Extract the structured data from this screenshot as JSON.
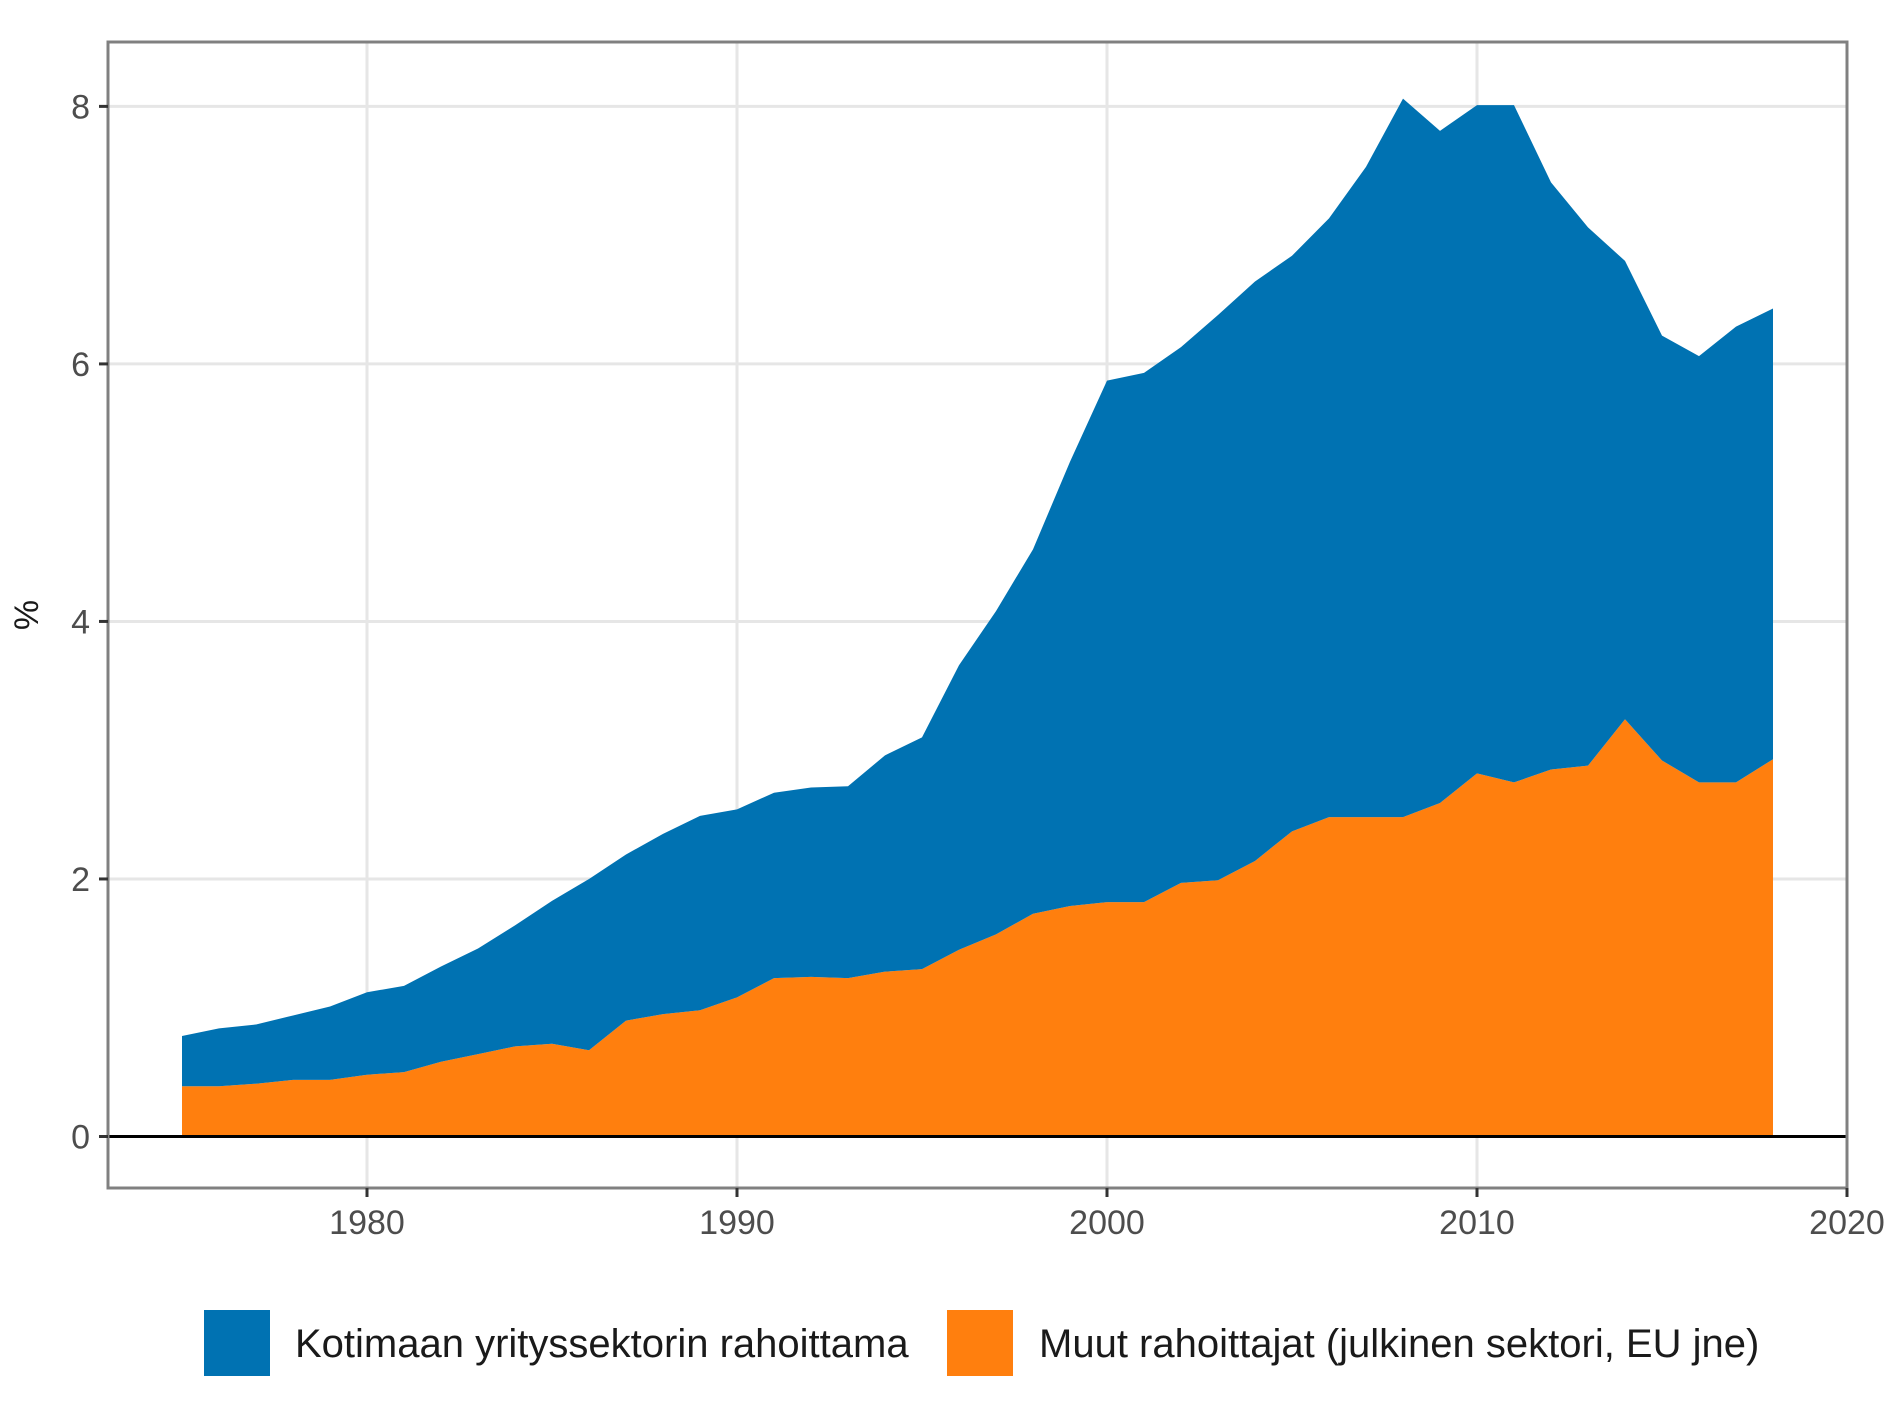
{
  "chart_data": {
    "type": "area",
    "stacked": true,
    "title": "",
    "xlabel": "",
    "ylabel": "%",
    "xlim": [
      1973,
      2020
    ],
    "ylim": [
      -0.4,
      8.5
    ],
    "x_ticks": [
      1980,
      1990,
      2000,
      2010,
      2020
    ],
    "y_ticks": [
      0,
      2,
      4,
      6,
      8
    ],
    "grid": true,
    "legend_position": "bottom",
    "x": [
      1975,
      1976,
      1977,
      1978,
      1979,
      1980,
      1981,
      1982,
      1983,
      1984,
      1985,
      1986,
      1987,
      1988,
      1989,
      1990,
      1991,
      1992,
      1993,
      1994,
      1995,
      1996,
      1997,
      1998,
      1999,
      2000,
      2001,
      2002,
      2003,
      2004,
      2005,
      2006,
      2007,
      2008,
      2009,
      2010,
      2011,
      2012,
      2013,
      2014,
      2015,
      2016,
      2017,
      2018
    ],
    "series": [
      {
        "name": "Muut rahoittajat (julkinen sektori, EU jne)",
        "color": "#FF7F0E",
        "values": [
          0.39,
          0.39,
          0.41,
          0.44,
          0.44,
          0.48,
          0.5,
          0.58,
          0.64,
          0.7,
          0.72,
          0.67,
          0.9,
          0.95,
          0.98,
          1.08,
          1.23,
          1.24,
          1.23,
          1.28,
          1.3,
          1.45,
          1.57,
          1.73,
          1.79,
          1.82,
          1.82,
          1.97,
          1.99,
          2.14,
          2.37,
          2.48,
          2.48,
          2.48,
          2.59,
          2.82,
          2.75,
          2.85,
          2.88,
          3.24,
          2.92,
          2.75,
          2.75,
          2.93
        ]
      },
      {
        "name": "Kotimaan yrityssektorin rahoittama",
        "color": "#0072B2",
        "values": [
          0.39,
          0.45,
          0.46,
          0.5,
          0.57,
          0.64,
          0.67,
          0.74,
          0.82,
          0.94,
          1.11,
          1.33,
          1.29,
          1.4,
          1.51,
          1.46,
          1.44,
          1.47,
          1.49,
          1.68,
          1.8,
          2.21,
          2.51,
          2.83,
          3.45,
          4.05,
          4.11,
          4.16,
          4.39,
          4.5,
          4.47,
          4.65,
          5.05,
          5.58,
          5.22,
          5.19,
          5.26,
          4.56,
          4.18,
          3.56,
          3.3,
          3.31,
          3.54,
          3.5
        ]
      }
    ]
  }
}
